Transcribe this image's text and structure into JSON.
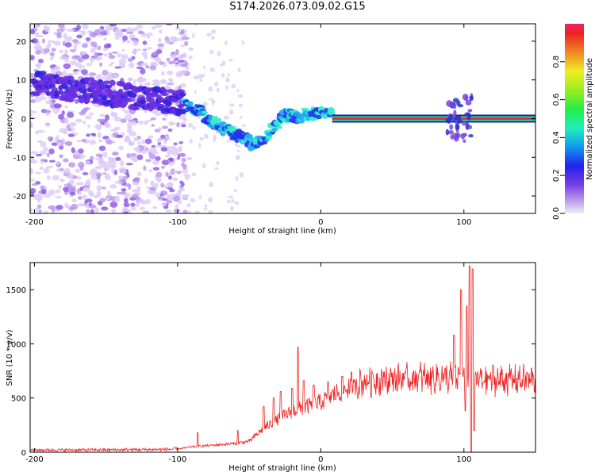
{
  "title": "S174.2026.073.09.02.G15",
  "colors": {
    "snr_line": "#ee2222",
    "blob": "#7733dd",
    "axis": "#000000"
  },
  "chart_data": [
    {
      "type": "heatmap",
      "name": "spectrogram",
      "xlabel": "Height of straight line (km)",
      "ylabel": "Frequency (Hz)",
      "xlim": [
        -203,
        150
      ],
      "ylim": [
        -24.5,
        24.5
      ],
      "xticks": [
        -200,
        -100,
        0,
        100
      ],
      "xtick_labels": [
        "-200",
        "-100",
        "0",
        "100"
      ],
      "yticks": [
        -20,
        -10,
        0,
        10,
        20
      ],
      "ytick_labels": [
        "-20",
        "-10",
        "0",
        "10",
        "20"
      ],
      "colorbar": {
        "label": "Normalized spectral amplitude",
        "range": [
          0,
          1
        ],
        "ticks": [
          0.0,
          0.2,
          0.4,
          0.6,
          0.8
        ],
        "tick_labels": [
          "0.0",
          "0.2",
          "0.4",
          "0.6",
          "0.8"
        ]
      },
      "ridge": [
        [
          -195,
          9
        ],
        [
          -180,
          8
        ],
        [
          -165,
          7.5
        ],
        [
          -150,
          6.5
        ],
        [
          -135,
          6
        ],
        [
          -120,
          5
        ],
        [
          -105,
          4.5
        ],
        [
          -95,
          4
        ],
        [
          -85,
          2
        ],
        [
          -75,
          -1
        ],
        [
          -65,
          -3
        ],
        [
          -55,
          -5
        ],
        [
          -48,
          -6.5
        ],
        [
          -40,
          -5
        ],
        [
          -32,
          -2
        ],
        [
          -25,
          1
        ],
        [
          -18,
          0.5
        ],
        [
          -10,
          1
        ],
        [
          -3,
          1.5
        ],
        [
          0,
          1.5
        ],
        [
          10,
          0.5
        ],
        [
          30,
          0
        ],
        [
          60,
          0
        ],
        [
          90,
          0
        ],
        [
          100,
          -1
        ],
        [
          105,
          0
        ],
        [
          120,
          0
        ],
        [
          150,
          0
        ]
      ]
    },
    {
      "type": "line",
      "name": "snr",
      "xlabel": "Height of straight line (km)",
      "ylabel": "SNR (10 * v/v)",
      "xlim": [
        -203,
        150
      ],
      "ylim": [
        0,
        1750
      ],
      "xticks": [
        -200,
        -100,
        0,
        100
      ],
      "xtick_labels": [
        "-200",
        "-100",
        "0",
        "100"
      ],
      "yticks": [
        0,
        500,
        1000,
        1500
      ],
      "ytick_labels": [
        "0",
        "500",
        "1000",
        "1500"
      ],
      "baseline": [
        [
          -203,
          20
        ],
        [
          -150,
          22
        ],
        [
          -110,
          25
        ],
        [
          -100,
          30
        ],
        [
          -90,
          50
        ],
        [
          -80,
          60
        ],
        [
          -70,
          70
        ],
        [
          -60,
          80
        ],
        [
          -50,
          100
        ],
        [
          -40,
          220
        ],
        [
          -30,
          300
        ],
        [
          -20,
          380
        ],
        [
          -10,
          420
        ],
        [
          0,
          460
        ],
        [
          10,
          540
        ],
        [
          20,
          600
        ],
        [
          30,
          650
        ],
        [
          40,
          670
        ],
        [
          60,
          680
        ],
        [
          80,
          690
        ],
        [
          100,
          680
        ],
        [
          110,
          670
        ],
        [
          130,
          670
        ],
        [
          150,
          670
        ]
      ],
      "peaks": [
        [
          -86,
          180
        ],
        [
          -58,
          200
        ],
        [
          -40,
          420
        ],
        [
          -33,
          500
        ],
        [
          -28,
          560
        ],
        [
          -20,
          590
        ],
        [
          -16,
          970
        ],
        [
          -12,
          660
        ],
        [
          -5,
          620
        ],
        [
          5,
          650
        ],
        [
          15,
          700
        ],
        [
          93,
          1080
        ],
        [
          98,
          1500
        ],
        [
          102,
          1350
        ],
        [
          104,
          1720
        ],
        [
          106,
          1690
        ]
      ],
      "dips": [
        [
          101,
          380
        ],
        [
          105,
          0
        ],
        [
          107,
          200
        ]
      ]
    }
  ]
}
